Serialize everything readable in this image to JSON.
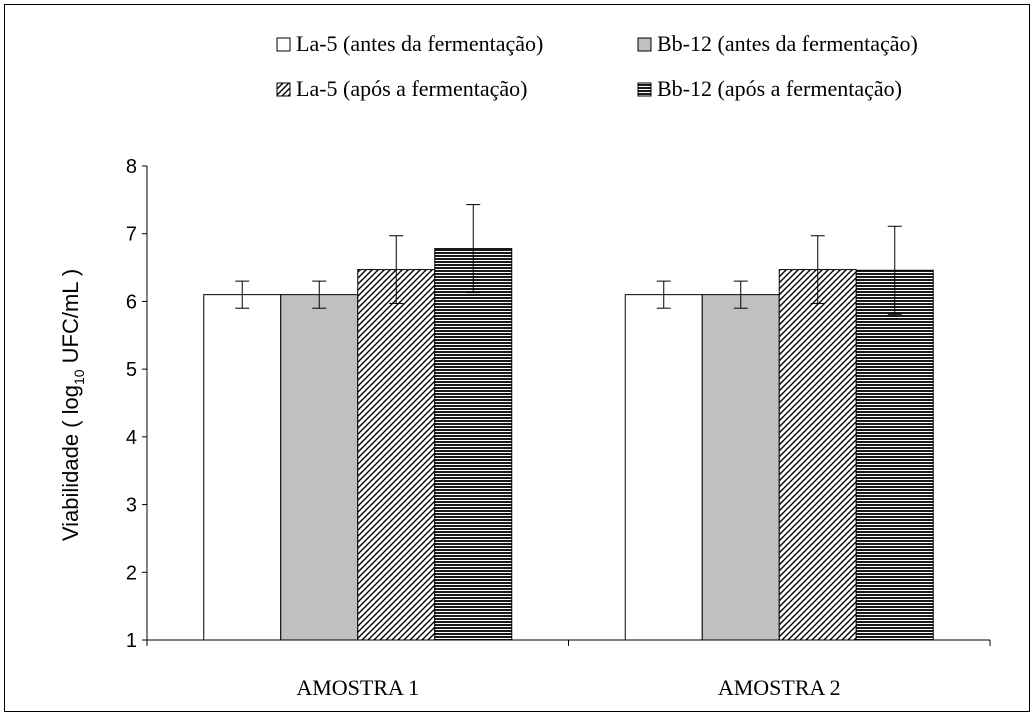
{
  "chart_data": {
    "type": "bar",
    "categories": [
      "AMOSTRA 1",
      "AMOSTRA 2"
    ],
    "ylabel_main": "Viabilidade ( log",
    "ylabel_sub": "10",
    "ylabel_end": " UFC/mL )",
    "ylim": [
      1,
      8
    ],
    "yticks": [
      1,
      2,
      3,
      4,
      5,
      6,
      7,
      8
    ],
    "grid": false,
    "legend_position": "top",
    "series": [
      {
        "name": "La-5 (antes da fermentação)",
        "values": [
          6.1,
          6.1
        ],
        "errors": [
          0.2,
          0.2
        ],
        "pattern": "white"
      },
      {
        "name": "Bb-12 (antes da fermentação)",
        "values": [
          6.1,
          6.1
        ],
        "errors": [
          0.2,
          0.2
        ],
        "pattern": "gray"
      },
      {
        "name": "La-5 (após a fermentação)",
        "values": [
          6.47,
          6.47
        ],
        "errors": [
          0.5,
          0.5
        ],
        "pattern": "diagonal"
      },
      {
        "name": "Bb-12 (após a fermentação)",
        "values": [
          6.78,
          6.46
        ],
        "errors": [
          0.65,
          0.65
        ],
        "pattern": "horizontal"
      }
    ]
  }
}
